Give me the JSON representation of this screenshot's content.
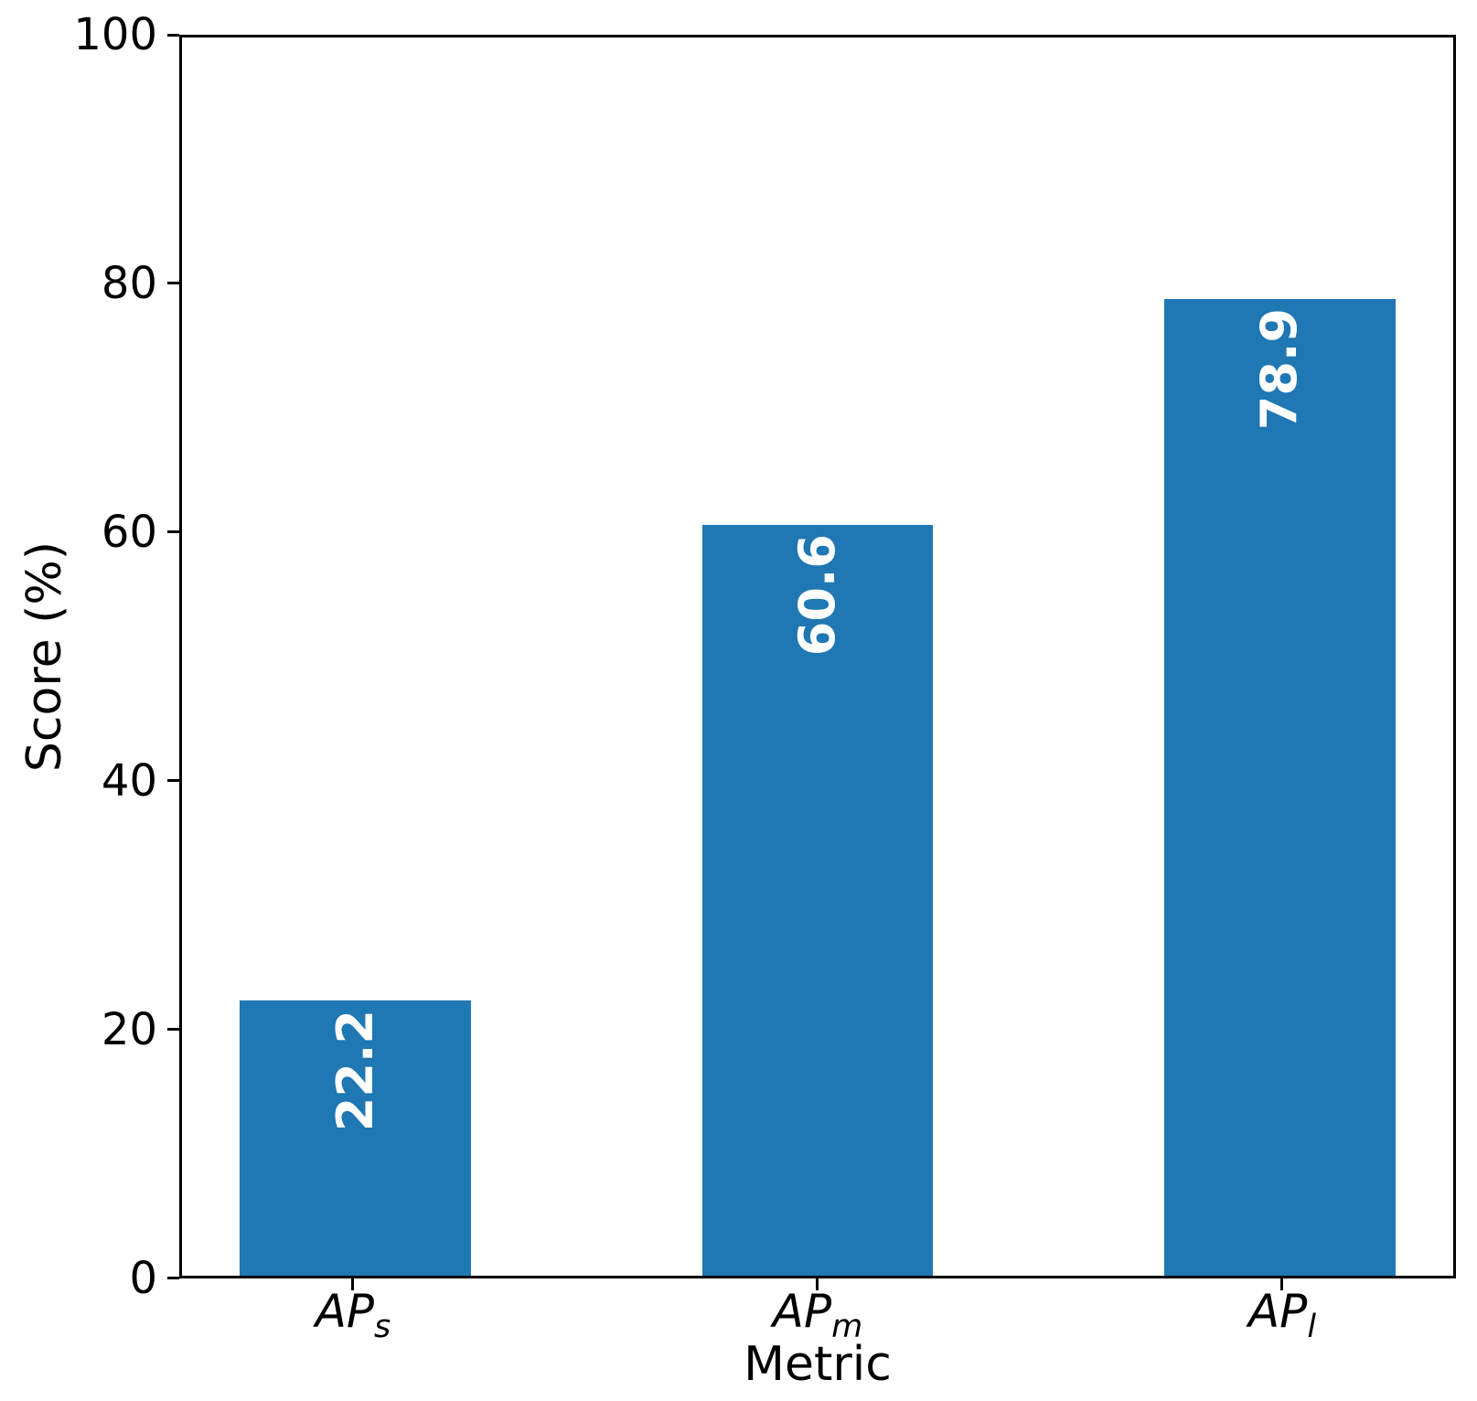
{
  "chart_data": {
    "type": "bar",
    "xlabel": "Metric",
    "ylabel": "Score (%)",
    "categories": [
      {
        "base": "AP",
        "sub": "s"
      },
      {
        "base": "AP",
        "sub": "m"
      },
      {
        "base": "AP",
        "sub": "l"
      }
    ],
    "values": [
      22.2,
      60.6,
      78.9
    ],
    "bar_labels": [
      "22.2",
      "60.6",
      "78.9"
    ],
    "ylim": [
      0,
      100
    ],
    "yticks": [
      "0",
      "20",
      "40",
      "60",
      "80",
      "100"
    ],
    "grid": false,
    "legend": null,
    "bar_color": "#1f77b4",
    "bar_label_color": "#ffffff",
    "axis_color": "#000000"
  }
}
